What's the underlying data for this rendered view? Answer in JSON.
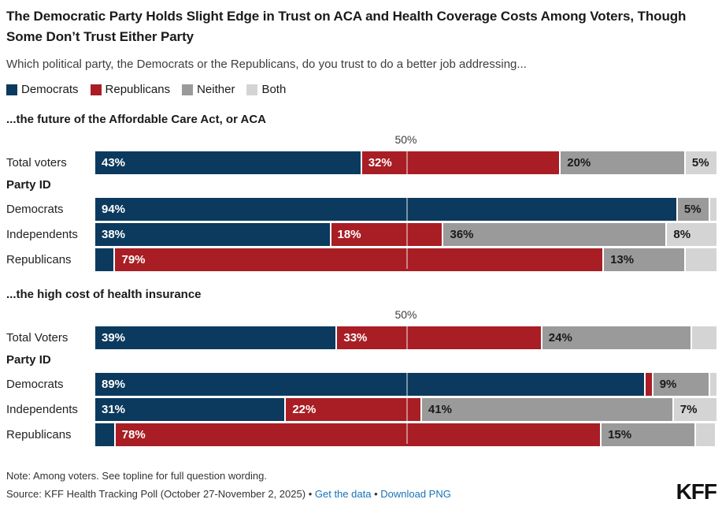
{
  "header": {
    "title": "The Democratic Party Holds Slight Edge in Trust on ACA and Health Coverage Costs Among Voters, Though Some Don’t Trust Either Party",
    "subtitle": "Which political party, the Democrats or the Republicans, do you trust to do a better job addressing..."
  },
  "legend": {
    "items": [
      {
        "label": "Democrats",
        "color": "#0b3a5e"
      },
      {
        "label": "Republicans",
        "color": "#a81e24"
      },
      {
        "label": "Neither",
        "color": "#9a9a9a"
      },
      {
        "label": "Both",
        "color": "#d4d4d4"
      }
    ]
  },
  "chart_data": [
    {
      "type": "bar",
      "orientation": "horizontal",
      "stacked": true,
      "title": "...the future of the Affordable Care Act, or ACA",
      "series_names": [
        "Democrats",
        "Republicans",
        "Neither",
        "Both"
      ],
      "axis": {
        "xlim": [
          0,
          100
        ],
        "gridline_x": 50,
        "gridline_label": "50%"
      },
      "rows": [
        {
          "label": "Total voters",
          "values": [
            43,
            32,
            20,
            5
          ],
          "value_labels": [
            "43%",
            "32%",
            "20%",
            "5%"
          ]
        },
        {
          "subheading": "Party ID"
        },
        {
          "label": "Democrats",
          "values": [
            94,
            0,
            5,
            1
          ],
          "value_labels": [
            "94%",
            "",
            "5%",
            ""
          ]
        },
        {
          "label": "Independents",
          "values": [
            38,
            18,
            36,
            8
          ],
          "value_labels": [
            "38%",
            "18%",
            "36%",
            "8%"
          ]
        },
        {
          "label": "Republicans",
          "values": [
            3,
            79,
            13,
            5
          ],
          "value_labels": [
            "",
            "79%",
            "13%",
            ""
          ]
        }
      ]
    },
    {
      "type": "bar",
      "orientation": "horizontal",
      "stacked": true,
      "title": "...the high cost of health insurance",
      "series_names": [
        "Democrats",
        "Republicans",
        "Neither",
        "Both"
      ],
      "axis": {
        "xlim": [
          0,
          100
        ],
        "gridline_x": 50,
        "gridline_label": "50%"
      },
      "rows": [
        {
          "label": "Total Voters",
          "values": [
            39,
            33,
            24,
            4
          ],
          "value_labels": [
            "39%",
            "33%",
            "24%",
            ""
          ]
        },
        {
          "subheading": "Party ID"
        },
        {
          "label": "Democrats",
          "values": [
            89,
            1,
            9,
            1
          ],
          "value_labels": [
            "89%",
            "",
            "9%",
            ""
          ]
        },
        {
          "label": "Independents",
          "values": [
            31,
            22,
            41,
            7
          ],
          "value_labels": [
            "31%",
            "22%",
            "41%",
            "7%"
          ]
        },
        {
          "label": "Republicans",
          "values": [
            3,
            78,
            15,
            3
          ],
          "value_labels": [
            "",
            "78%",
            "15%",
            ""
          ]
        }
      ]
    }
  ],
  "footer": {
    "note": "Note: Among voters. See topline for full question wording.",
    "source_prefix": "Source: KFF Health Tracking Poll (October 27-November 2, 2025)",
    "separator": "•",
    "links": [
      {
        "label": "Get the data"
      },
      {
        "label": "Download PNG"
      }
    ],
    "logo": "KFF"
  }
}
